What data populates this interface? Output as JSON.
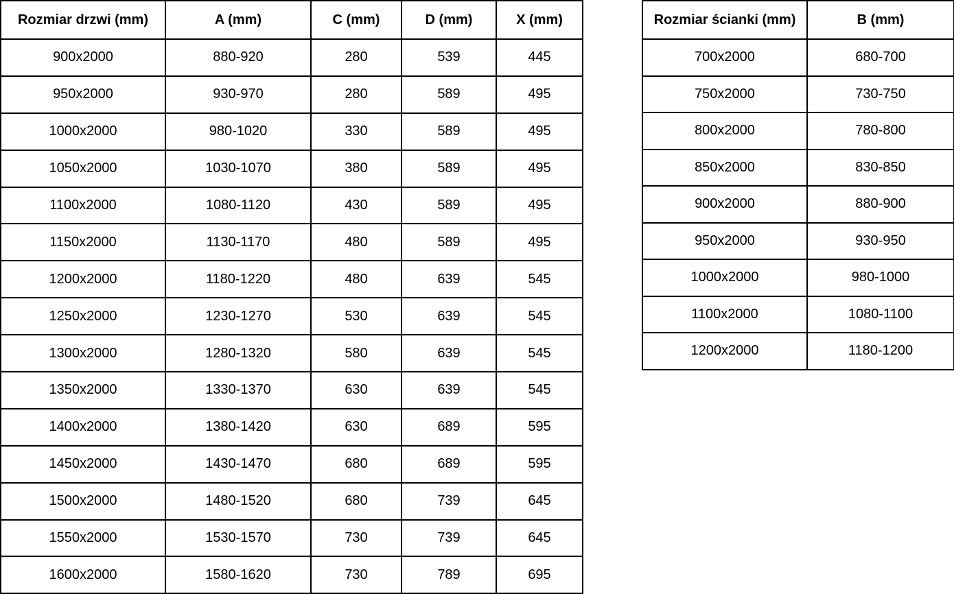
{
  "door_table": {
    "name": "Rozmiar drzwi (mm)",
    "headers": [
      "Rozmiar drzwi (mm)",
      "A (mm)",
      "C (mm)",
      "D (mm)",
      "X (mm)"
    ],
    "rows": [
      [
        "900x2000",
        "880-920",
        "280",
        "539",
        "445"
      ],
      [
        "950x2000",
        "930-970",
        "280",
        "589",
        "495"
      ],
      [
        "1000x2000",
        "980-1020",
        "330",
        "589",
        "495"
      ],
      [
        "1050x2000",
        "1030-1070",
        "380",
        "589",
        "495"
      ],
      [
        "1100x2000",
        "1080-1120",
        "430",
        "589",
        "495"
      ],
      [
        "1150x2000",
        "1130-1170",
        "480",
        "589",
        "495"
      ],
      [
        "1200x2000",
        "1180-1220",
        "480",
        "639",
        "545"
      ],
      [
        "1250x2000",
        "1230-1270",
        "530",
        "639",
        "545"
      ],
      [
        "1300x2000",
        "1280-1320",
        "580",
        "639",
        "545"
      ],
      [
        "1350x2000",
        "1330-1370",
        "630",
        "639",
        "545"
      ],
      [
        "1400x2000",
        "1380-1420",
        "630",
        "689",
        "595"
      ],
      [
        "1450x2000",
        "1430-1470",
        "680",
        "689",
        "595"
      ],
      [
        "1500x2000",
        "1480-1520",
        "680",
        "739",
        "645"
      ],
      [
        "1550x2000",
        "1530-1570",
        "730",
        "739",
        "645"
      ],
      [
        "1600x2000",
        "1580-1620",
        "730",
        "789",
        "695"
      ]
    ]
  },
  "wall_table": {
    "name": "Rozmiar ścianki (mm)",
    "headers": [
      "Rozmiar ścianki (mm)",
      "B (mm)"
    ],
    "rows": [
      [
        "700x2000",
        "680-700"
      ],
      [
        "750x2000",
        "730-750"
      ],
      [
        "800x2000",
        "780-800"
      ],
      [
        "850x2000",
        "830-850"
      ],
      [
        "900x2000",
        "880-900"
      ],
      [
        "950x2000",
        "930-950"
      ],
      [
        "1000x2000",
        "980-1000"
      ],
      [
        "1100x2000",
        "1080-1100"
      ],
      [
        "1200x2000",
        "1180-1200"
      ]
    ]
  },
  "chart_data": [
    {
      "type": "table",
      "title": "Rozmiar drzwi (mm)",
      "columns": [
        "Rozmiar drzwi (mm)",
        "A (mm)",
        "C (mm)",
        "D (mm)",
        "X (mm)"
      ],
      "rows": [
        [
          "900x2000",
          "880-920",
          280,
          539,
          445
        ],
        [
          "950x2000",
          "930-970",
          280,
          589,
          495
        ],
        [
          "1000x2000",
          "980-1020",
          330,
          589,
          495
        ],
        [
          "1050x2000",
          "1030-1070",
          380,
          589,
          495
        ],
        [
          "1100x2000",
          "1080-1120",
          430,
          589,
          495
        ],
        [
          "1150x2000",
          "1130-1170",
          480,
          589,
          495
        ],
        [
          "1200x2000",
          "1180-1220",
          480,
          639,
          545
        ],
        [
          "1250x2000",
          "1230-1270",
          530,
          639,
          545
        ],
        [
          "1300x2000",
          "1280-1320",
          580,
          639,
          545
        ],
        [
          "1350x2000",
          "1330-1370",
          630,
          639,
          545
        ],
        [
          "1400x2000",
          "1380-1420",
          630,
          689,
          595
        ],
        [
          "1450x2000",
          "1430-1470",
          680,
          689,
          595
        ],
        [
          "1500x2000",
          "1480-1520",
          680,
          739,
          645
        ],
        [
          "1550x2000",
          "1530-1570",
          730,
          739,
          645
        ],
        [
          "1600x2000",
          "1580-1620",
          730,
          789,
          695
        ]
      ]
    },
    {
      "type": "table",
      "title": "Rozmiar ścianki (mm)",
      "columns": [
        "Rozmiar ścianki (mm)",
        "B (mm)"
      ],
      "rows": [
        [
          "700x2000",
          "680-700"
        ],
        [
          "750x2000",
          "730-750"
        ],
        [
          "800x2000",
          "780-800"
        ],
        [
          "850x2000",
          "830-850"
        ],
        [
          "900x2000",
          "880-900"
        ],
        [
          "950x2000",
          "930-950"
        ],
        [
          "1000x2000",
          "980-1000"
        ],
        [
          "1100x2000",
          "1080-1100"
        ],
        [
          "1200x2000",
          "1180-1200"
        ]
      ]
    }
  ],
  "colors": {
    "text": "#000000",
    "border": "#000000",
    "background": "#ffffff"
  }
}
